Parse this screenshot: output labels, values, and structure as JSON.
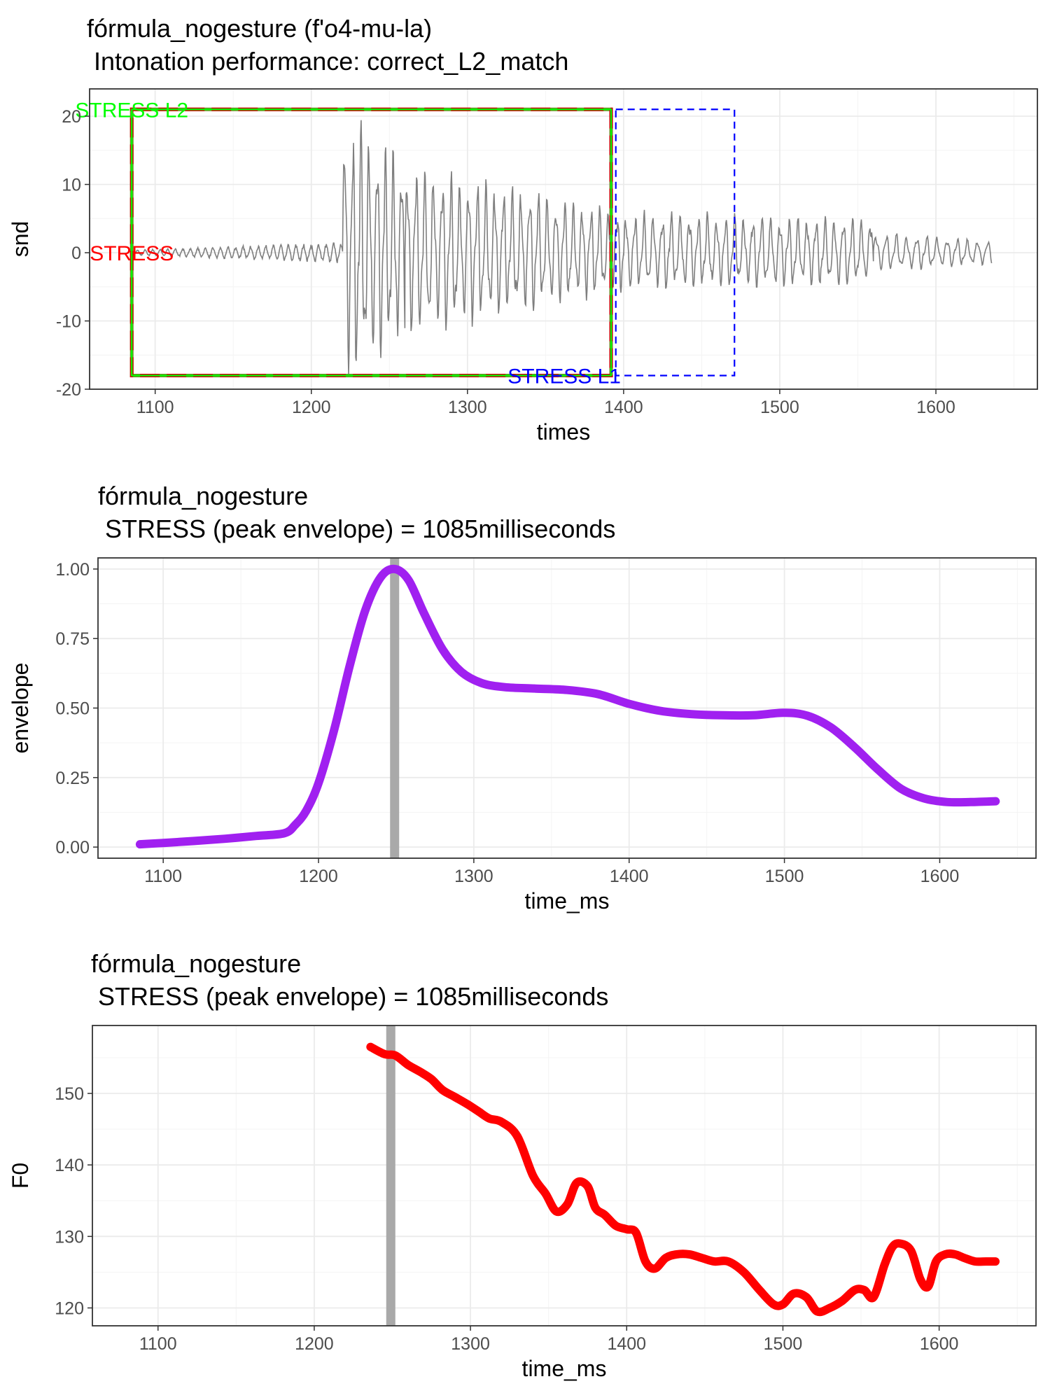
{
  "chart_data": [
    {
      "type": "line",
      "title": "fórmula_nogesture  (f'o4-mu-la)",
      "subtitle": " Intonation performance: correct_L2_match",
      "xlabel": "times",
      "ylabel": "snd",
      "xlim": [
        1058,
        1665
      ],
      "ylim": [
        -20,
        24
      ],
      "xticks": [
        1100,
        1200,
        1300,
        1400,
        1500,
        1600
      ],
      "yticks": [
        -20,
        -10,
        0,
        10,
        20
      ],
      "grid": true,
      "series": [
        {
          "color": "#7f7f7f",
          "waveform_segments": [
            {
              "x": [
                1085,
                1220
              ],
              "amplitude": [
                0.4,
                1.6
              ]
            },
            {
              "x": [
                1220,
                1260
              ],
              "amplitude": [
                20,
                14
              ],
              "cycle_ms": 5.2
            },
            {
              "x": [
                1260,
                1400
              ],
              "amplitude": [
                13,
                6
              ],
              "cycle_ms": 5.6
            },
            {
              "x": [
                1400,
                1560
              ],
              "amplitude": [
                6,
                5
              ],
              "cycle_ms": 5.8
            },
            {
              "x": [
                1560,
                1636
              ],
              "amplitude": [
                3,
                1.8
              ],
              "cycle_ms": 6.5
            }
          ]
        }
      ],
      "annotations": [
        {
          "text": "STRESS L2",
          "color": "#00ff00",
          "x": 1085
        },
        {
          "text": "STRESS",
          "color": "#ff0000",
          "x": 1085
        },
        {
          "text": "STRESS L1",
          "color": "#0000ff",
          "x": 1350
        }
      ],
      "regions": [
        {
          "label_ref": "STRESS",
          "x0": 1085,
          "x1": 1392,
          "y0": -18,
          "y1": 21,
          "color": "#cc0000",
          "fill_color": "#6b8e23",
          "style": "longdash"
        },
        {
          "label_ref": "STRESS L2",
          "x0": 1085,
          "x1": 1392,
          "y0": -18,
          "y1": 21,
          "color": "#00ff00",
          "style": "solid"
        },
        {
          "label_ref": "STRESS L1",
          "x0": 1395,
          "x1": 1471,
          "y0": -18,
          "y1": 21,
          "color": "#0000ff",
          "style": "dashed"
        }
      ]
    },
    {
      "type": "line",
      "title": "fórmula_nogesture",
      "subtitle": " STRESS (peak envelope) = 1085milliseconds",
      "xlabel": "time_ms",
      "ylabel": "envelope",
      "xlim": [
        1058,
        1662
      ],
      "ylim": [
        -0.04,
        1.04
      ],
      "xticks": [
        1100,
        1200,
        1300,
        1400,
        1500,
        1600
      ],
      "yticks": [
        0.0,
        0.25,
        0.5,
        0.75,
        1.0
      ],
      "ytick_labels": [
        "0.00",
        "0.25",
        "0.50",
        "0.75",
        "1.00"
      ],
      "grid": true,
      "vline": {
        "x": 1249,
        "color": "#a9a9a9"
      },
      "series": [
        {
          "color": "#a020f0",
          "x": [
            1085,
            1100,
            1120,
            1140,
            1160,
            1178,
            1185,
            1192,
            1200,
            1210,
            1220,
            1230,
            1240,
            1249,
            1258,
            1268,
            1280,
            1292,
            1305,
            1320,
            1340,
            1360,
            1380,
            1400,
            1420,
            1440,
            1460,
            1480,
            1500,
            1515,
            1530,
            1545,
            1560,
            1575,
            1590,
            1605,
            1620,
            1636
          ],
          "y": [
            0.01,
            0.015,
            0.022,
            0.03,
            0.04,
            0.05,
            0.08,
            0.13,
            0.23,
            0.42,
            0.65,
            0.85,
            0.97,
            1.0,
            0.96,
            0.84,
            0.71,
            0.63,
            0.59,
            0.575,
            0.57,
            0.565,
            0.55,
            0.515,
            0.49,
            0.478,
            0.474,
            0.474,
            0.483,
            0.472,
            0.43,
            0.36,
            0.28,
            0.21,
            0.175,
            0.162,
            0.162,
            0.165
          ]
        }
      ]
    },
    {
      "type": "line",
      "title": "fórmula_nogesture",
      "subtitle": " STRESS (peak envelope) = 1085milliseconds",
      "xlabel": "time_ms",
      "ylabel": "F0",
      "xlim": [
        1058,
        1662
      ],
      "ylim": [
        117.5,
        159.5
      ],
      "xticks": [
        1100,
        1200,
        1300,
        1400,
        1500,
        1600
      ],
      "yticks": [
        120,
        130,
        140,
        150
      ],
      "grid": true,
      "vline": {
        "x": 1249,
        "color": "#a9a9a9"
      },
      "series": [
        {
          "color": "#ff0000",
          "x": [
            1236,
            1245,
            1252,
            1260,
            1268,
            1275,
            1282,
            1290,
            1298,
            1305,
            1312,
            1320,
            1330,
            1340,
            1348,
            1355,
            1362,
            1368,
            1375,
            1380,
            1386,
            1393,
            1400,
            1406,
            1412,
            1418,
            1425,
            1432,
            1440,
            1448,
            1456,
            1465,
            1475,
            1485,
            1494,
            1500,
            1507,
            1515,
            1522,
            1530,
            1538,
            1546,
            1552,
            1558,
            1565,
            1570,
            1575,
            1582,
            1588,
            1593,
            1598,
            1604,
            1610,
            1616,
            1623,
            1630,
            1636
          ],
          "y": [
            156.5,
            155.5,
            155.3,
            154,
            153,
            152,
            150.5,
            149.5,
            148.5,
            147.5,
            146.5,
            146,
            144,
            138.5,
            136,
            133.5,
            134.5,
            137.5,
            137,
            134,
            133,
            131.5,
            131,
            130.5,
            126.5,
            125.5,
            127,
            127.5,
            127.5,
            127,
            126.5,
            126.5,
            125,
            122.5,
            120.5,
            120.5,
            122,
            121.5,
            119.5,
            120,
            121,
            122.5,
            122.5,
            121.5,
            126,
            128.5,
            129,
            128,
            124,
            123,
            126.5,
            127.5,
            127.5,
            127,
            126.5,
            126.5,
            126.5
          ]
        }
      ]
    }
  ]
}
